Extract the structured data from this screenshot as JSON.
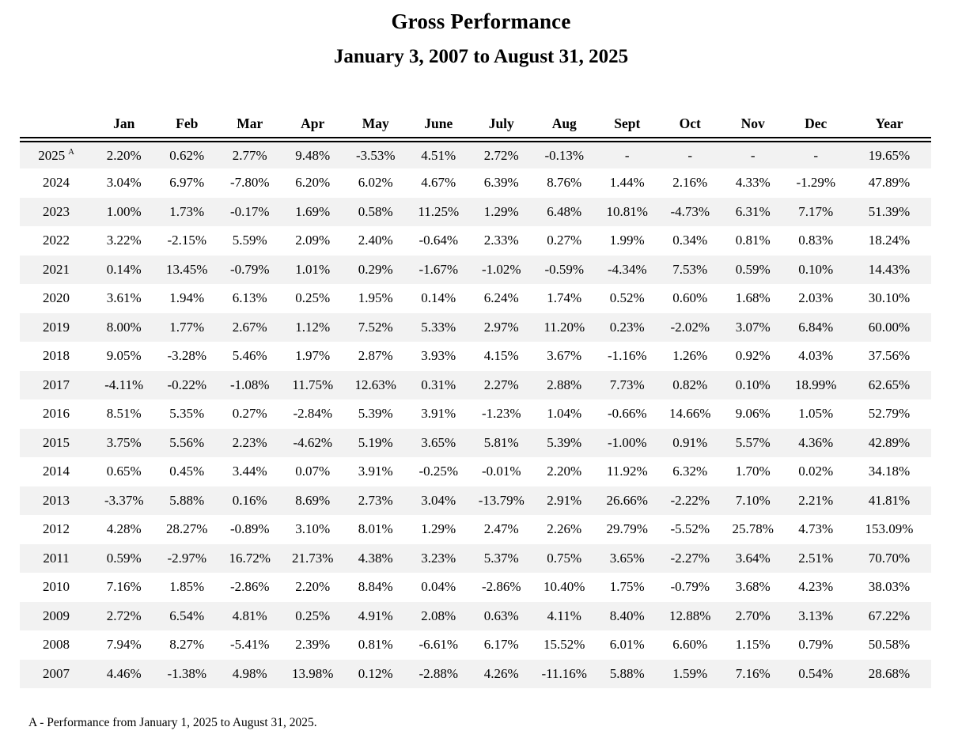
{
  "header": {
    "title": "Gross Performance",
    "subtitle": "January 3, 2007 to August 31, 2025"
  },
  "footnote": "A - Performance from January 1, 2025 to August 31, 2025.",
  "colors": {
    "background": "#ffffff",
    "text": "#000000",
    "row_shade": "#f2f2f2",
    "rule": "#000000"
  },
  "chart_data": {
    "type": "table",
    "title": "Gross Performance",
    "subtitle": "January 3, 2007 to August 31, 2025",
    "columns": [
      "",
      "Jan",
      "Feb",
      "Mar",
      "Apr",
      "May",
      "June",
      "July",
      "Aug",
      "Sept",
      "Oct",
      "Nov",
      "Dec",
      "Year"
    ],
    "layout_hints": {
      "striped": true,
      "header_rule": "double",
      "value_units": "percent"
    },
    "rows": [
      {
        "year": "2025",
        "note": "A",
        "values": [
          "2.20%",
          "0.62%",
          "2.77%",
          "9.48%",
          "-3.53%",
          "4.51%",
          "2.72%",
          "-0.13%",
          "-",
          "-",
          "-",
          "-",
          "19.65%"
        ]
      },
      {
        "year": "2024",
        "note": "",
        "values": [
          "3.04%",
          "6.97%",
          "-7.80%",
          "6.20%",
          "6.02%",
          "4.67%",
          "6.39%",
          "8.76%",
          "1.44%",
          "2.16%",
          "4.33%",
          "-1.29%",
          "47.89%"
        ]
      },
      {
        "year": "2023",
        "note": "",
        "values": [
          "1.00%",
          "1.73%",
          "-0.17%",
          "1.69%",
          "0.58%",
          "11.25%",
          "1.29%",
          "6.48%",
          "10.81%",
          "-4.73%",
          "6.31%",
          "7.17%",
          "51.39%"
        ]
      },
      {
        "year": "2022",
        "note": "",
        "values": [
          "3.22%",
          "-2.15%",
          "5.59%",
          "2.09%",
          "2.40%",
          "-0.64%",
          "2.33%",
          "0.27%",
          "1.99%",
          "0.34%",
          "0.81%",
          "0.83%",
          "18.24%"
        ]
      },
      {
        "year": "2021",
        "note": "",
        "values": [
          "0.14%",
          "13.45%",
          "-0.79%",
          "1.01%",
          "0.29%",
          "-1.67%",
          "-1.02%",
          "-0.59%",
          "-4.34%",
          "7.53%",
          "0.59%",
          "0.10%",
          "14.43%"
        ]
      },
      {
        "year": "2020",
        "note": "",
        "values": [
          "3.61%",
          "1.94%",
          "6.13%",
          "0.25%",
          "1.95%",
          "0.14%",
          "6.24%",
          "1.74%",
          "0.52%",
          "0.60%",
          "1.68%",
          "2.03%",
          "30.10%"
        ]
      },
      {
        "year": "2019",
        "note": "",
        "values": [
          "8.00%",
          "1.77%",
          "2.67%",
          "1.12%",
          "7.52%",
          "5.33%",
          "2.97%",
          "11.20%",
          "0.23%",
          "-2.02%",
          "3.07%",
          "6.84%",
          "60.00%"
        ]
      },
      {
        "year": "2018",
        "note": "",
        "values": [
          "9.05%",
          "-3.28%",
          "5.46%",
          "1.97%",
          "2.87%",
          "3.93%",
          "4.15%",
          "3.67%",
          "-1.16%",
          "1.26%",
          "0.92%",
          "4.03%",
          "37.56%"
        ]
      },
      {
        "year": "2017",
        "note": "",
        "values": [
          "-4.11%",
          "-0.22%",
          "-1.08%",
          "11.75%",
          "12.63%",
          "0.31%",
          "2.27%",
          "2.88%",
          "7.73%",
          "0.82%",
          "0.10%",
          "18.99%",
          "62.65%"
        ]
      },
      {
        "year": "2016",
        "note": "",
        "values": [
          "8.51%",
          "5.35%",
          "0.27%",
          "-2.84%",
          "5.39%",
          "3.91%",
          "-1.23%",
          "1.04%",
          "-0.66%",
          "14.66%",
          "9.06%",
          "1.05%",
          "52.79%"
        ]
      },
      {
        "year": "2015",
        "note": "",
        "values": [
          "3.75%",
          "5.56%",
          "2.23%",
          "-4.62%",
          "5.19%",
          "3.65%",
          "5.81%",
          "5.39%",
          "-1.00%",
          "0.91%",
          "5.57%",
          "4.36%",
          "42.89%"
        ]
      },
      {
        "year": "2014",
        "note": "",
        "values": [
          "0.65%",
          "0.45%",
          "3.44%",
          "0.07%",
          "3.91%",
          "-0.25%",
          "-0.01%",
          "2.20%",
          "11.92%",
          "6.32%",
          "1.70%",
          "0.02%",
          "34.18%"
        ]
      },
      {
        "year": "2013",
        "note": "",
        "values": [
          "-3.37%",
          "5.88%",
          "0.16%",
          "8.69%",
          "2.73%",
          "3.04%",
          "-13.79%",
          "2.91%",
          "26.66%",
          "-2.22%",
          "7.10%",
          "2.21%",
          "41.81%"
        ]
      },
      {
        "year": "2012",
        "note": "",
        "values": [
          "4.28%",
          "28.27%",
          "-0.89%",
          "3.10%",
          "8.01%",
          "1.29%",
          "2.47%",
          "2.26%",
          "29.79%",
          "-5.52%",
          "25.78%",
          "4.73%",
          "153.09%"
        ]
      },
      {
        "year": "2011",
        "note": "",
        "values": [
          "0.59%",
          "-2.97%",
          "16.72%",
          "21.73%",
          "4.38%",
          "3.23%",
          "5.37%",
          "0.75%",
          "3.65%",
          "-2.27%",
          "3.64%",
          "2.51%",
          "70.70%"
        ]
      },
      {
        "year": "2010",
        "note": "",
        "values": [
          "7.16%",
          "1.85%",
          "-2.86%",
          "2.20%",
          "8.84%",
          "0.04%",
          "-2.86%",
          "10.40%",
          "1.75%",
          "-0.79%",
          "3.68%",
          "4.23%",
          "38.03%"
        ]
      },
      {
        "year": "2009",
        "note": "",
        "values": [
          "2.72%",
          "6.54%",
          "4.81%",
          "0.25%",
          "4.91%",
          "2.08%",
          "0.63%",
          "4.11%",
          "8.40%",
          "12.88%",
          "2.70%",
          "3.13%",
          "67.22%"
        ]
      },
      {
        "year": "2008",
        "note": "",
        "values": [
          "7.94%",
          "8.27%",
          "-5.41%",
          "2.39%",
          "0.81%",
          "-6.61%",
          "6.17%",
          "15.52%",
          "6.01%",
          "6.60%",
          "1.15%",
          "0.79%",
          "50.58%"
        ]
      },
      {
        "year": "2007",
        "note": "",
        "values": [
          "4.46%",
          "-1.38%",
          "4.98%",
          "13.98%",
          "0.12%",
          "-2.88%",
          "4.26%",
          "-11.16%",
          "5.88%",
          "1.59%",
          "7.16%",
          "0.54%",
          "28.68%"
        ]
      }
    ]
  }
}
